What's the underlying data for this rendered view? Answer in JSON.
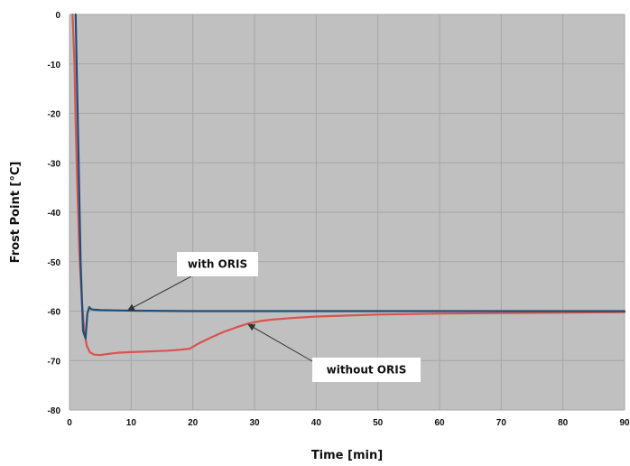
{
  "chart_data": {
    "type": "line",
    "xlabel": "Time [min]",
    "ylabel": "Frost Point [°C]",
    "xlim": [
      0,
      90
    ],
    "ylim": [
      -80,
      0
    ],
    "x_ticks": [
      "0",
      "10",
      "20",
      "30",
      "40",
      "50",
      "60",
      "70",
      "80",
      "90"
    ],
    "y_ticks": [
      "0",
      "-10",
      "-20",
      "-30",
      "-40",
      "-50",
      "-60",
      "-70",
      "-80"
    ],
    "grid": true,
    "legend": "none",
    "plot_background": "#c0c0c0",
    "grid_color": "#a6a6a6",
    "series": [
      {
        "name": "without ORIS",
        "color": "#d9534f",
        "x": [
          0.5,
          0.8,
          1.0,
          1.3,
          1.6,
          2.0,
          2.4,
          2.8,
          3.3,
          4.0,
          5.0,
          6.0,
          8.0,
          10.0,
          12.0,
          14.0,
          16.0,
          18.0,
          19.5,
          21.0,
          23.0,
          25.0,
          27.0,
          29.0,
          31.0,
          33.0,
          36.0,
          40.0,
          45.0,
          50.0,
          55.0,
          60.0,
          70.0,
          80.0,
          90.0
        ],
        "y": [
          0,
          -10,
          -22,
          -36,
          -48,
          -58,
          -64,
          -67,
          -68.3,
          -68.8,
          -68.9,
          -68.7,
          -68.4,
          -68.3,
          -68.2,
          -68.1,
          -68.0,
          -67.8,
          -67.6,
          -66.5,
          -65.3,
          -64.2,
          -63.3,
          -62.5,
          -62.0,
          -61.7,
          -61.4,
          -61.1,
          -60.9,
          -60.7,
          -60.6,
          -60.5,
          -60.4,
          -60.3,
          -60.2
        ]
      },
      {
        "name": "with ORIS",
        "color": "#1f4e79",
        "x": [
          1.0,
          1.4,
          1.8,
          2.2,
          2.6,
          2.9,
          3.2,
          3.5,
          4.0,
          5.0,
          10.0,
          20.0,
          30.0,
          40.0,
          50.0,
          60.0,
          70.0,
          80.0,
          90.0
        ],
        "y": [
          0,
          -25,
          -50,
          -64,
          -65.5,
          -60.5,
          -59.2,
          -59.6,
          -59.7,
          -59.8,
          -59.9,
          -60.0,
          -60.0,
          -60.0,
          -60.0,
          -60.0,
          -60.0,
          -60.0,
          -60.0
        ]
      }
    ],
    "annotations": [
      {
        "text": "with ORIS",
        "target_x": 9.5,
        "target_y": -59.8
      },
      {
        "text": "without ORIS",
        "target_x": 29,
        "target_y": -62.7
      }
    ]
  }
}
